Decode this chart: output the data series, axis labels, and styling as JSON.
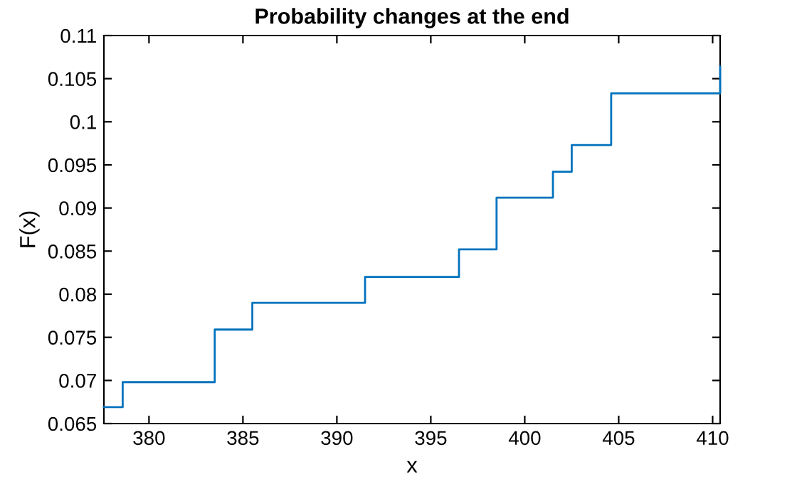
{
  "chart_data": {
    "type": "step",
    "title": "Probability changes at the end",
    "xlabel": "x",
    "ylabel": "F(x)",
    "x": [
      377.6,
      378.6,
      383.5,
      385.5,
      391.5,
      396.5,
      398.5,
      401.5,
      402.5,
      404.6,
      410.4
    ],
    "series": [
      {
        "color": "#0072bd",
        "values": [
          0.0669,
          0.0698,
          0.0759,
          0.079,
          0.082,
          0.0852,
          0.0912,
          0.0942,
          0.0973,
          0.1033,
          0.1064
        ]
      }
    ],
    "xlim": [
      377.6,
      410.4
    ],
    "xticks": [
      380,
      385,
      390,
      395,
      400,
      405,
      410
    ],
    "ylim": [
      0.065,
      0.11
    ],
    "yticks": [
      0.065,
      0.07,
      0.075,
      0.08,
      0.085,
      0.09,
      0.095,
      0.1,
      0.105,
      0.11
    ],
    "grid": false,
    "legend": false
  }
}
